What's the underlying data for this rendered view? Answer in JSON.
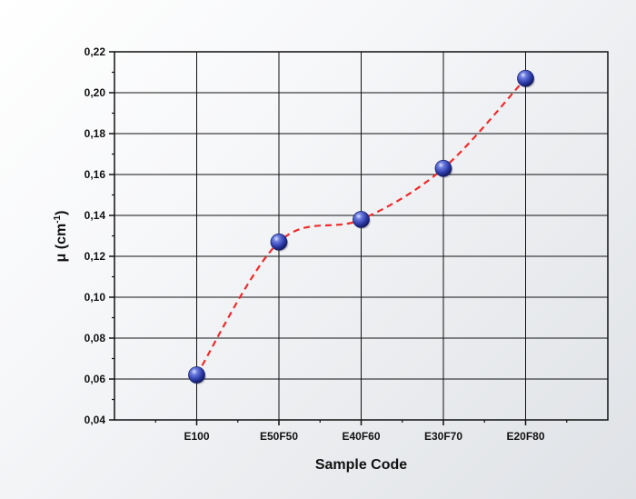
{
  "chart_data": {
    "type": "line",
    "categories": [
      "E100",
      "E50F50",
      "E40F60",
      "E30F70",
      "E20F80"
    ],
    "series": [
      {
        "values": [
          0.062,
          0.127,
          0.138,
          0.163,
          0.207
        ]
      }
    ],
    "xlabel": "Sample Code",
    "ylabel": "μ (cm",
    "ylabel_superscript": "-1",
    "ylabel_suffix": ")",
    "ylim": [
      0.04,
      0.22
    ],
    "yticks": [
      "0,04",
      "0,06",
      "0,08",
      "0,10",
      "0,12",
      "0,14",
      "0,16",
      "0,18",
      "0,20",
      "0,22"
    ],
    "grid": true,
    "line_style": "dashed",
    "colors": {
      "line": "#ee2b2b",
      "marker": "#2b3aa8",
      "grid": "#111111"
    }
  }
}
